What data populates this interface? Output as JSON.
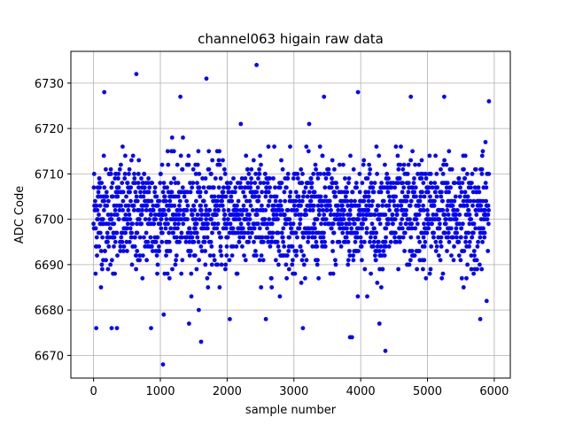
{
  "chart_data": {
    "type": "scatter",
    "title": "channel063 higain raw data",
    "xlabel": "sample number",
    "ylabel": "ADC Code",
    "xlim": [
      -340,
      6240
    ],
    "ylim": [
      6665,
      6737
    ],
    "xticks": [
      0,
      1000,
      2000,
      3000,
      4000,
      5000,
      6000
    ],
    "yticks": [
      6670,
      6680,
      6690,
      6700,
      6710,
      6720,
      6730
    ],
    "grid": true,
    "legend": "none",
    "marker_color": "#0000ff",
    "n_samples": 5920,
    "x_range": [
      0,
      5919
    ],
    "typical_band": [
      6686,
      6716
    ],
    "center": 6701,
    "outliers": [
      {
        "x": 640,
        "y": 6732
      },
      {
        "x": 1690,
        "y": 6731
      },
      {
        "x": 2440,
        "y": 6734
      },
      {
        "x": 3960,
        "y": 6728
      },
      {
        "x": 160,
        "y": 6728
      },
      {
        "x": 1040,
        "y": 6668
      },
      {
        "x": 1610,
        "y": 6673
      },
      {
        "x": 4370,
        "y": 6671
      },
      {
        "x": 40,
        "y": 6676
      },
      {
        "x": 270,
        "y": 6676
      },
      {
        "x": 350,
        "y": 6676
      },
      {
        "x": 1430,
        "y": 6677
      },
      {
        "x": 3840,
        "y": 6674
      },
      {
        "x": 3870,
        "y": 6674
      },
      {
        "x": 4280,
        "y": 6677
      },
      {
        "x": 4750,
        "y": 6727
      },
      {
        "x": 5250,
        "y": 6727
      },
      {
        "x": 5920,
        "y": 6726
      },
      {
        "x": 1300,
        "y": 6727
      },
      {
        "x": 3450,
        "y": 6727
      },
      {
        "x": 860,
        "y": 6676
      },
      {
        "x": 5790,
        "y": 6678
      },
      {
        "x": 2580,
        "y": 6678
      },
      {
        "x": 2040,
        "y": 6678
      }
    ]
  }
}
